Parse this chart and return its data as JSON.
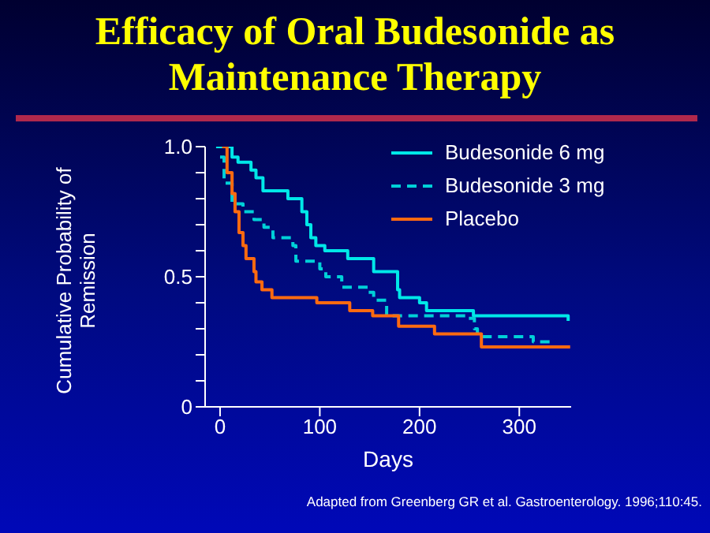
{
  "chart_data": {
    "type": "step",
    "title": "Efficacy of Oral Budesonide as Maintenance Therapy",
    "xlabel": "Days",
    "ylabel": "Cumulative Probability of Remission",
    "annotations": [
      "Adapted from Greenberg GR et al. Gastroenterology. 1996;110:45."
    ],
    "series": [
      {
        "name": "Budesonide 6 mg",
        "color": "#00e8e8",
        "line_style": "solid",
        "x": [
          -4,
          12,
          18,
          31,
          36,
          43,
          68,
          82,
          87,
          91,
          96,
          105,
          128,
          154,
          178,
          180,
          200,
          207,
          254,
          349
        ],
        "values": [
          1,
          0.96,
          0.94,
          0.91,
          0.88,
          0.83,
          0.8,
          0.75,
          0.7,
          0.65,
          0.62,
          0.6,
          0.57,
          0.52,
          0.45,
          0.42,
          0.4,
          0.37,
          0.35,
          0.33
        ]
      },
      {
        "name": "Budesonide 3 mg",
        "color": "#00d0d8",
        "line_style": "dashed",
        "x": [
          0,
          4,
          12,
          23,
          34,
          44,
          53,
          73,
          76,
          100,
          106,
          122,
          148,
          154,
          167,
          247,
          255,
          258,
          314,
          335
        ],
        "values": [
          0.96,
          0.86,
          0.78,
          0.75,
          0.72,
          0.69,
          0.65,
          0.62,
          0.56,
          0.53,
          0.5,
          0.46,
          0.44,
          0.41,
          0.35,
          0.34,
          0.3,
          0.27,
          0.25,
          0.25
        ]
      },
      {
        "name": "Placebo",
        "color": "#ff6a10",
        "line_style": "solid",
        "x": [
          2,
          7,
          12,
          15,
          19,
          23,
          26,
          34,
          36,
          42,
          52,
          97,
          130,
          153,
          179,
          215,
          262,
          351
        ],
        "values": [
          1,
          0.9,
          0.82,
          0.75,
          0.67,
          0.62,
          0.57,
          0.52,
          0.48,
          0.45,
          0.42,
          0.4,
          0.37,
          0.35,
          0.31,
          0.28,
          0.23,
          0.23
        ]
      }
    ],
    "xlim": [
      -15,
      352
    ],
    "xticks": [
      0,
      100,
      200,
      300
    ],
    "ylim": [
      0,
      1
    ],
    "yticks": [
      {
        "value": 0,
        "label": "0"
      },
      {
        "value": 0.1,
        "label": null
      },
      {
        "value": 0.2,
        "label": null
      },
      {
        "value": 0.3,
        "label": null
      },
      {
        "value": 0.4,
        "label": null
      },
      {
        "value": 0.5,
        "label": "0.5"
      },
      {
        "value": 0.6,
        "label": null
      },
      {
        "value": 0.7,
        "label": null
      },
      {
        "value": 0.8,
        "label": null
      },
      {
        "value": 0.9,
        "label": null
      },
      {
        "value": 1,
        "label": "1.0"
      }
    ],
    "grid": false,
    "legend": "top right",
    "marker": "none"
  }
}
